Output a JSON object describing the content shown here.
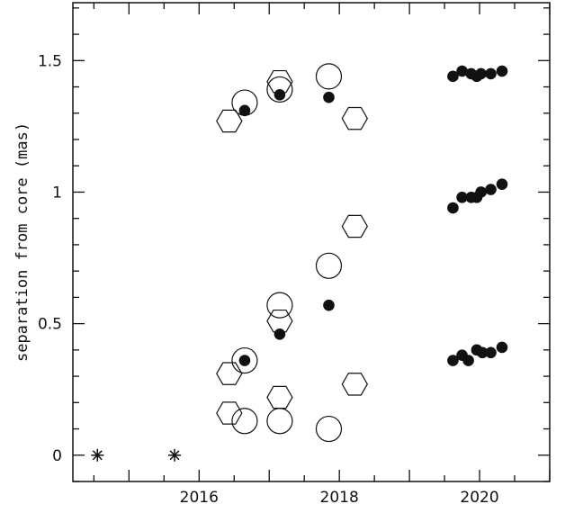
{
  "chart_data": {
    "type": "scatter",
    "title": "",
    "xlabel": "",
    "ylabel": "separation from core (mas)",
    "xlim": [
      2014.2,
      2021.0
    ],
    "ylim": [
      -0.1,
      1.72
    ],
    "grid": false,
    "x_ticks": [
      {
        "value": 2016,
        "label": "2016"
      },
      {
        "value": 2018,
        "label": "2018"
      },
      {
        "value": 2020,
        "label": "2020"
      }
    ],
    "y_ticks": [
      {
        "value": 0,
        "label": "0"
      },
      {
        "value": 0.5,
        "label": "0.5"
      },
      {
        "value": 1,
        "label": "1"
      },
      {
        "value": 1.5,
        "label": "1.5"
      }
    ],
    "series": [
      {
        "marker": "asterisk",
        "points": [
          {
            "x": 2014.55,
            "y": 0.0
          },
          {
            "x": 2015.65,
            "y": 0.0
          }
        ]
      },
      {
        "marker": "open-hexagon",
        "points": [
          {
            "x": 2016.43,
            "y": 1.27
          },
          {
            "x": 2017.15,
            "y": 1.42
          },
          {
            "x": 2018.22,
            "y": 1.28
          },
          {
            "x": 2018.22,
            "y": 0.87
          },
          {
            "x": 2017.15,
            "y": 0.51
          },
          {
            "x": 2016.43,
            "y": 0.31
          },
          {
            "x": 2017.15,
            "y": 0.22
          },
          {
            "x": 2018.22,
            "y": 0.27
          },
          {
            "x": 2016.43,
            "y": 0.16
          }
        ]
      },
      {
        "marker": "open-circle",
        "points": [
          {
            "x": 2016.65,
            "y": 1.34
          },
          {
            "x": 2017.15,
            "y": 1.39
          },
          {
            "x": 2017.85,
            "y": 1.44
          },
          {
            "x": 2017.85,
            "y": 0.72
          },
          {
            "x": 2017.15,
            "y": 0.57
          },
          {
            "x": 2016.65,
            "y": 0.36
          },
          {
            "x": 2016.65,
            "y": 0.13
          },
          {
            "x": 2017.15,
            "y": 0.13
          },
          {
            "x": 2017.85,
            "y": 0.1
          }
        ]
      },
      {
        "marker": "filled-circle",
        "points": [
          {
            "x": 2016.65,
            "y": 1.31
          },
          {
            "x": 2017.15,
            "y": 1.37
          },
          {
            "x": 2017.85,
            "y": 1.36
          },
          {
            "x": 2017.85,
            "y": 0.57
          },
          {
            "x": 2017.15,
            "y": 0.46
          },
          {
            "x": 2016.65,
            "y": 0.36
          },
          {
            "x": 2019.62,
            "y": 1.44
          },
          {
            "x": 2019.75,
            "y": 1.46
          },
          {
            "x": 2019.88,
            "y": 1.45
          },
          {
            "x": 2019.96,
            "y": 1.44
          },
          {
            "x": 2020.02,
            "y": 1.45
          },
          {
            "x": 2020.16,
            "y": 1.45
          },
          {
            "x": 2020.32,
            "y": 1.46
          },
          {
            "x": 2019.62,
            "y": 0.94
          },
          {
            "x": 2019.75,
            "y": 0.98
          },
          {
            "x": 2019.88,
            "y": 0.98
          },
          {
            "x": 2019.96,
            "y": 0.98
          },
          {
            "x": 2020.02,
            "y": 1.0
          },
          {
            "x": 2020.16,
            "y": 1.01
          },
          {
            "x": 2020.32,
            "y": 1.03
          },
          {
            "x": 2019.62,
            "y": 0.36
          },
          {
            "x": 2019.75,
            "y": 0.38
          },
          {
            "x": 2019.84,
            "y": 0.36
          },
          {
            "x": 2019.96,
            "y": 0.4
          },
          {
            "x": 2020.04,
            "y": 0.39
          },
          {
            "x": 2020.16,
            "y": 0.39
          },
          {
            "x": 2020.32,
            "y": 0.41
          }
        ]
      }
    ]
  }
}
